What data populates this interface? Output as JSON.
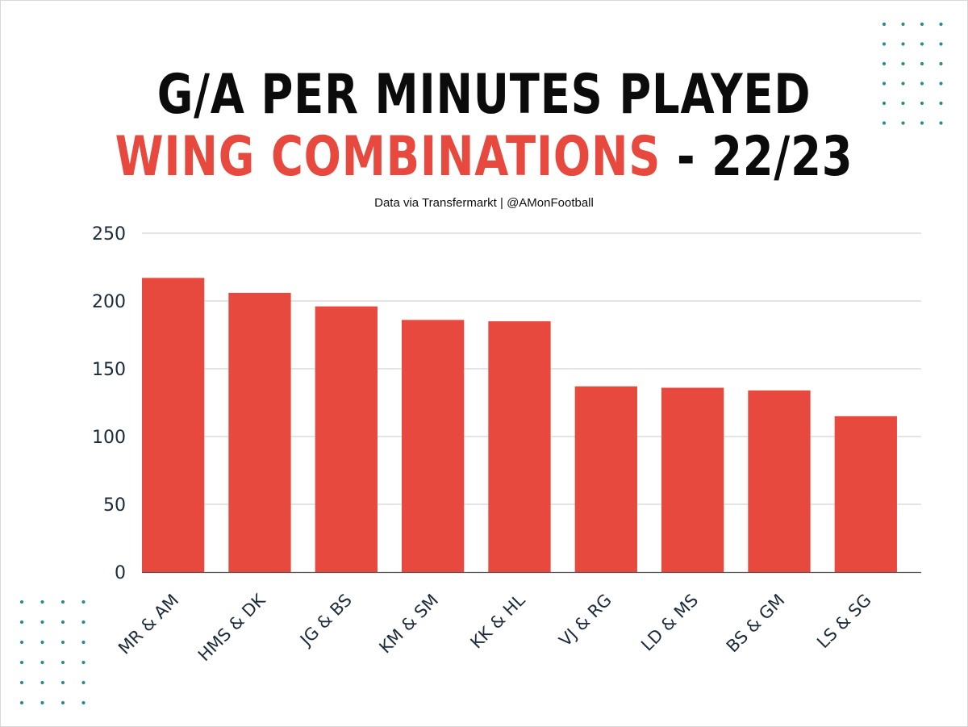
{
  "header": {
    "title_line1": "G/A PER MINUTES PLAYED",
    "title_line2_accent": "WING COMBINATIONS",
    "title_line2_rest": " - 22/23",
    "subtitle": "Data via Transfermarkt | @AMonFootball"
  },
  "chart_data": {
    "type": "bar",
    "title": "G/A PER MINUTES PLAYED WING COMBINATIONS - 22/23",
    "subtitle": "Data via Transfermarkt | @AMonFootball",
    "categories": [
      "MR & AM",
      "HMS & DK",
      "JG & BS",
      "KM & SM",
      "KK & HL",
      "VJ & RG",
      "LD & MS",
      "BS & GM",
      "LS & SG"
    ],
    "values": [
      217,
      206,
      196,
      186,
      185,
      137,
      136,
      134,
      115
    ],
    "yticks": [
      0,
      50,
      100,
      150,
      200,
      250
    ],
    "ylim": [
      0,
      250
    ],
    "xlabel": "",
    "ylabel": "",
    "grid": true,
    "legend": "none"
  },
  "colors": {
    "bar": "#e8493e",
    "accent_text": "#e8493e",
    "title_text": "#0b0b0b",
    "axis_text": "#1b2a3a",
    "gridline": "#c9c9c9",
    "decor_dots": "#2f8a8a"
  }
}
